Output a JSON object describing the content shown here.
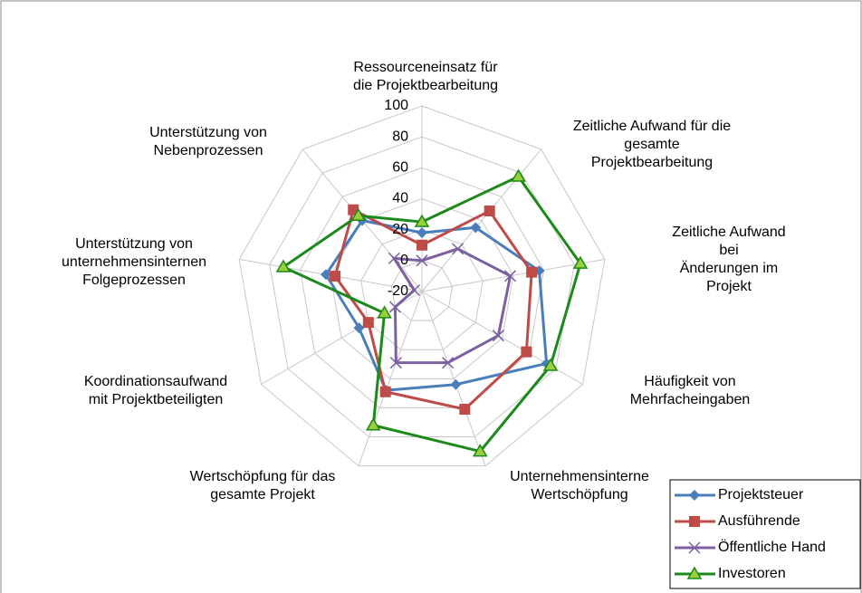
{
  "chart_data": {
    "type": "radar",
    "categories": [
      "Ressourceneinsatz für\ndie Projektbearbeitung",
      "Zeitliche Aufwand für die\ngesamte\nProjektbearbeitung",
      "Zeitliche Aufwand bei\nÄnderungen im Projekt",
      "Häufigkeit von\nMehrfacheingaben",
      "Unternehmensinterne\nWertschöpfung",
      "Wertschöpfung für das\ngesamte Projekt",
      "Koordinationsaufwand\nmit Projektbeteiligten",
      "Unterstützung von\nunternehmensinternen\nFolgeprozessen",
      "Unterstützung von\nNebenprozessen"
    ],
    "series": [
      {
        "name": "Projektsteuer",
        "color": "#4a7ebb",
        "marker": "diamond",
        "values": [
          18,
          34,
          57,
          73,
          44,
          48,
          27,
          43,
          40
        ]
      },
      {
        "name": "Ausführende",
        "color": "#be4b48",
        "marker": "square",
        "values": [
          10,
          48,
          52,
          58,
          61,
          49,
          20,
          37,
          49
        ]
      },
      {
        "name": "Öffentliche Hand",
        "color": "#7d60a0",
        "marker": "x",
        "values": [
          0,
          16,
          38,
          37,
          29,
          29,
          0,
          -15,
          8
        ]
      },
      {
        "name": "Investoren",
        "color": "#1b8a1b",
        "marker": "triangle",
        "values": [
          25,
          77,
          84,
          76,
          90,
          72,
          8,
          71,
          44
        ]
      }
    ],
    "ylim": [
      -20,
      100
    ],
    "yticks": [
      -20,
      0,
      20,
      40,
      60,
      80,
      100
    ],
    "grid": true,
    "legend": "bottom-right"
  }
}
